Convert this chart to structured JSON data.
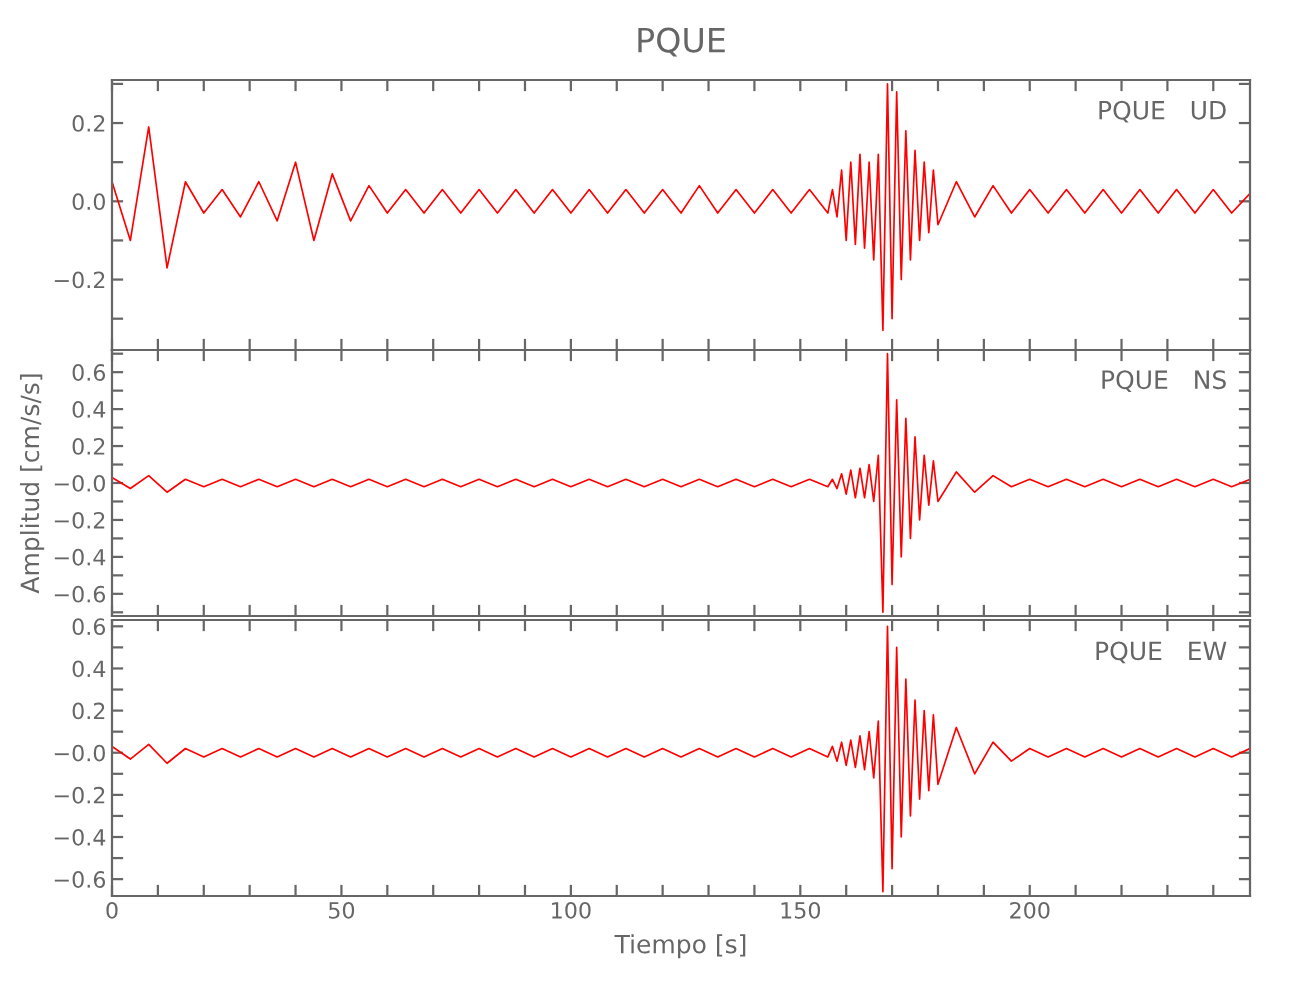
{
  "chart_data": [
    {
      "type": "line",
      "title": "PQUE",
      "xlim": [
        0,
        248
      ],
      "ylim": [
        -0.38,
        0.31
      ],
      "tick_labels": "y",
      "legend": false,
      "grid": false,
      "x": [
        0,
        4,
        8,
        12,
        16,
        20,
        24,
        28,
        32,
        36,
        40,
        44,
        48,
        52,
        56,
        60,
        64,
        68,
        72,
        76,
        80,
        84,
        88,
        92,
        96,
        100,
        104,
        108,
        112,
        116,
        120,
        124,
        128,
        132,
        136,
        140,
        144,
        148,
        152,
        156,
        157,
        158,
        159,
        160,
        161,
        162,
        163,
        164,
        165,
        166,
        167,
        168,
        169,
        170,
        171,
        172,
        173,
        174,
        175,
        176,
        177,
        178,
        179,
        180,
        184,
        188,
        192,
        196,
        200,
        204,
        208,
        212,
        216,
        220,
        224,
        228,
        232,
        236,
        240,
        244,
        248
      ],
      "xticks": [
        {
          "value": 0,
          "label": null
        },
        {
          "value": 10,
          "label": null
        },
        {
          "value": 20,
          "label": null
        },
        {
          "value": 30,
          "label": null
        },
        {
          "value": 40,
          "label": null
        },
        {
          "value": 50,
          "label": null
        },
        {
          "value": 60,
          "label": null
        },
        {
          "value": 70,
          "label": null
        },
        {
          "value": 80,
          "label": null
        },
        {
          "value": 90,
          "label": null
        },
        {
          "value": 100,
          "label": null
        },
        {
          "value": 110,
          "label": null
        },
        {
          "value": 120,
          "label": null
        },
        {
          "value": 130,
          "label": null
        },
        {
          "value": 140,
          "label": null
        },
        {
          "value": 150,
          "label": null
        },
        {
          "value": 160,
          "label": null
        },
        {
          "value": 170,
          "label": null
        },
        {
          "value": 180,
          "label": null
        },
        {
          "value": 190,
          "label": null
        },
        {
          "value": 200,
          "label": null
        },
        {
          "value": 210,
          "label": null
        },
        {
          "value": 220,
          "label": null
        },
        {
          "value": 230,
          "label": null
        },
        {
          "value": 240,
          "label": null
        }
      ],
      "yticks": [
        {
          "value": -0.3,
          "label": null
        },
        {
          "value": -0.2,
          "label": "−0.2"
        },
        {
          "value": -0.1,
          "label": null
        },
        {
          "value": 0,
          "label": "0.0"
        },
        {
          "value": 0.1,
          "label": null
        },
        {
          "value": 0.2,
          "label": "0.2"
        },
        {
          "value": 0.3,
          "label": null
        }
      ],
      "series": [
        {
          "name": "PQUE   UD",
          "color": "#ff0000",
          "values": [
            0.05,
            -0.1,
            0.19,
            -0.17,
            0.05,
            -0.03,
            0.03,
            -0.04,
            0.05,
            -0.05,
            0.1,
            -0.1,
            0.07,
            -0.05,
            0.04,
            -0.03,
            0.03,
            -0.03,
            0.03,
            -0.03,
            0.03,
            -0.03,
            0.03,
            -0.03,
            0.03,
            -0.03,
            0.03,
            -0.03,
            0.03,
            -0.03,
            0.03,
            -0.03,
            0.04,
            -0.03,
            0.03,
            -0.03,
            0.03,
            -0.03,
            0.03,
            -0.03,
            0.03,
            -0.04,
            0.08,
            -0.1,
            0.1,
            -0.11,
            0.12,
            -0.12,
            0.1,
            -0.15,
            0.12,
            -0.33,
            0.3,
            -0.3,
            0.28,
            -0.2,
            0.18,
            -0.15,
            0.13,
            -0.1,
            0.1,
            -0.08,
            0.08,
            -0.06,
            0.05,
            -0.04,
            0.04,
            -0.03,
            0.03,
            -0.03,
            0.03,
            -0.03,
            0.03,
            -0.03,
            0.03,
            -0.03,
            0.03,
            -0.03,
            0.03,
            -0.03,
            0.02
          ]
        }
      ]
    },
    {
      "type": "line",
      "ylabel": "Amplitud [cm/s/s]",
      "xlim": [
        0,
        248
      ],
      "ylim": [
        -0.72,
        0.72
      ],
      "tick_labels": "y",
      "legend": false,
      "grid": false,
      "x": [
        0,
        4,
        8,
        12,
        16,
        20,
        24,
        28,
        32,
        36,
        40,
        44,
        48,
        52,
        56,
        60,
        64,
        68,
        72,
        76,
        80,
        84,
        88,
        92,
        96,
        100,
        104,
        108,
        112,
        116,
        120,
        124,
        128,
        132,
        136,
        140,
        144,
        148,
        152,
        156,
        157,
        158,
        159,
        160,
        161,
        162,
        163,
        164,
        165,
        166,
        167,
        168,
        169,
        170,
        171,
        172,
        173,
        174,
        175,
        176,
        177,
        178,
        179,
        180,
        184,
        188,
        192,
        196,
        200,
        204,
        208,
        212,
        216,
        220,
        224,
        228,
        232,
        236,
        240,
        244,
        248
      ],
      "xticks": [
        {
          "value": 0,
          "label": null
        },
        {
          "value": 10,
          "label": null
        },
        {
          "value": 20,
          "label": null
        },
        {
          "value": 30,
          "label": null
        },
        {
          "value": 40,
          "label": null
        },
        {
          "value": 50,
          "label": null
        },
        {
          "value": 60,
          "label": null
        },
        {
          "value": 70,
          "label": null
        },
        {
          "value": 80,
          "label": null
        },
        {
          "value": 90,
          "label": null
        },
        {
          "value": 100,
          "label": null
        },
        {
          "value": 110,
          "label": null
        },
        {
          "value": 120,
          "label": null
        },
        {
          "value": 130,
          "label": null
        },
        {
          "value": 140,
          "label": null
        },
        {
          "value": 150,
          "label": null
        },
        {
          "value": 160,
          "label": null
        },
        {
          "value": 170,
          "label": null
        },
        {
          "value": 180,
          "label": null
        },
        {
          "value": 190,
          "label": null
        },
        {
          "value": 200,
          "label": null
        },
        {
          "value": 210,
          "label": null
        },
        {
          "value": 220,
          "label": null
        },
        {
          "value": 230,
          "label": null
        },
        {
          "value": 240,
          "label": null
        }
      ],
      "yticks": [
        {
          "value": -0.7,
          "label": null
        },
        {
          "value": -0.6,
          "label": "−0.6"
        },
        {
          "value": -0.5,
          "label": null
        },
        {
          "value": -0.4,
          "label": "−0.4"
        },
        {
          "value": -0.3,
          "label": null
        },
        {
          "value": -0.2,
          "label": "−0.2"
        },
        {
          "value": -0.1,
          "label": null
        },
        {
          "value": 0,
          "label": "−0.0"
        },
        {
          "value": 0.1,
          "label": null
        },
        {
          "value": 0.2,
          "label": "0.2"
        },
        {
          "value": 0.3,
          "label": null
        },
        {
          "value": 0.4,
          "label": "0.4"
        },
        {
          "value": 0.5,
          "label": null
        },
        {
          "value": 0.6,
          "label": "0.6"
        },
        {
          "value": 0.7,
          "label": null
        }
      ],
      "series": [
        {
          "name": "PQUE   NS",
          "color": "#ff0000",
          "values": [
            0.03,
            -0.03,
            0.04,
            -0.05,
            0.02,
            -0.02,
            0.02,
            -0.02,
            0.02,
            -0.02,
            0.02,
            -0.02,
            0.02,
            -0.02,
            0.02,
            -0.02,
            0.02,
            -0.02,
            0.02,
            -0.02,
            0.02,
            -0.02,
            0.02,
            -0.02,
            0.02,
            -0.02,
            0.02,
            -0.02,
            0.02,
            -0.02,
            0.02,
            -0.02,
            0.02,
            -0.02,
            0.02,
            -0.02,
            0.02,
            -0.02,
            0.02,
            -0.02,
            0.02,
            -0.03,
            0.05,
            -0.06,
            0.07,
            -0.08,
            0.08,
            -0.08,
            0.1,
            -0.1,
            0.15,
            -0.7,
            0.7,
            -0.55,
            0.45,
            -0.4,
            0.35,
            -0.3,
            0.25,
            -0.2,
            0.15,
            -0.12,
            0.12,
            -0.1,
            0.06,
            -0.05,
            0.04,
            -0.02,
            0.02,
            -0.02,
            0.02,
            -0.02,
            0.02,
            -0.02,
            0.02,
            -0.02,
            0.02,
            -0.02,
            0.02,
            -0.02,
            0.02
          ]
        }
      ]
    },
    {
      "type": "line",
      "xlabel": "Tiempo [s]",
      "xlim": [
        0,
        248
      ],
      "ylim": [
        -0.68,
        0.63
      ],
      "legend": false,
      "grid": false,
      "x": [
        0,
        4,
        8,
        12,
        16,
        20,
        24,
        28,
        32,
        36,
        40,
        44,
        48,
        52,
        56,
        60,
        64,
        68,
        72,
        76,
        80,
        84,
        88,
        92,
        96,
        100,
        104,
        108,
        112,
        116,
        120,
        124,
        128,
        132,
        136,
        140,
        144,
        148,
        152,
        156,
        157,
        158,
        159,
        160,
        161,
        162,
        163,
        164,
        165,
        166,
        167,
        168,
        169,
        170,
        171,
        172,
        173,
        174,
        175,
        176,
        177,
        178,
        179,
        180,
        184,
        188,
        192,
        196,
        200,
        204,
        208,
        212,
        216,
        220,
        224,
        228,
        232,
        236,
        240,
        244,
        248
      ],
      "xticks": [
        {
          "value": 0,
          "label": "0"
        },
        {
          "value": 10,
          "label": null
        },
        {
          "value": 20,
          "label": null
        },
        {
          "value": 30,
          "label": null
        },
        {
          "value": 40,
          "label": null
        },
        {
          "value": 50,
          "label": "50"
        },
        {
          "value": 60,
          "label": null
        },
        {
          "value": 70,
          "label": null
        },
        {
          "value": 80,
          "label": null
        },
        {
          "value": 90,
          "label": null
        },
        {
          "value": 100,
          "label": "100"
        },
        {
          "value": 110,
          "label": null
        },
        {
          "value": 120,
          "label": null
        },
        {
          "value": 130,
          "label": null
        },
        {
          "value": 140,
          "label": null
        },
        {
          "value": 150,
          "label": "150"
        },
        {
          "value": 160,
          "label": null
        },
        {
          "value": 170,
          "label": null
        },
        {
          "value": 180,
          "label": null
        },
        {
          "value": 190,
          "label": null
        },
        {
          "value": 200,
          "label": "200"
        },
        {
          "value": 210,
          "label": null
        },
        {
          "value": 220,
          "label": null
        },
        {
          "value": 230,
          "label": null
        },
        {
          "value": 240,
          "label": null
        }
      ],
      "yticks": [
        {
          "value": -0.6,
          "label": "−0.6"
        },
        {
          "value": -0.5,
          "label": null
        },
        {
          "value": -0.4,
          "label": "−0.4"
        },
        {
          "value": -0.3,
          "label": null
        },
        {
          "value": -0.2,
          "label": "−0.2"
        },
        {
          "value": -0.1,
          "label": null
        },
        {
          "value": 0,
          "label": "−0.0"
        },
        {
          "value": 0.1,
          "label": null
        },
        {
          "value": 0.2,
          "label": "0.2"
        },
        {
          "value": 0.3,
          "label": null
        },
        {
          "value": 0.4,
          "label": "0.4"
        },
        {
          "value": 0.5,
          "label": null
        },
        {
          "value": 0.6,
          "label": "0.6"
        }
      ],
      "series": [
        {
          "name": "PQUE   EW",
          "color": "#ff0000",
          "values": [
            0.03,
            -0.03,
            0.04,
            -0.05,
            0.02,
            -0.02,
            0.02,
            -0.02,
            0.02,
            -0.02,
            0.02,
            -0.02,
            0.02,
            -0.02,
            0.02,
            -0.02,
            0.02,
            -0.02,
            0.02,
            -0.02,
            0.02,
            -0.02,
            0.02,
            -0.02,
            0.02,
            -0.02,
            0.02,
            -0.02,
            0.02,
            -0.02,
            0.02,
            -0.02,
            0.02,
            -0.02,
            0.02,
            -0.02,
            0.02,
            -0.02,
            0.02,
            -0.02,
            0.03,
            -0.04,
            0.05,
            -0.06,
            0.06,
            -0.07,
            0.08,
            -0.08,
            0.1,
            -0.12,
            0.15,
            -0.66,
            0.6,
            -0.55,
            0.5,
            -0.4,
            0.35,
            -0.3,
            0.25,
            -0.22,
            0.2,
            -0.18,
            0.18,
            -0.15,
            0.12,
            -0.1,
            0.05,
            -0.04,
            0.02,
            -0.02,
            0.02,
            -0.02,
            0.02,
            -0.02,
            0.02,
            -0.02,
            0.02,
            -0.02,
            0.02,
            -0.02,
            0.02
          ]
        }
      ]
    }
  ]
}
